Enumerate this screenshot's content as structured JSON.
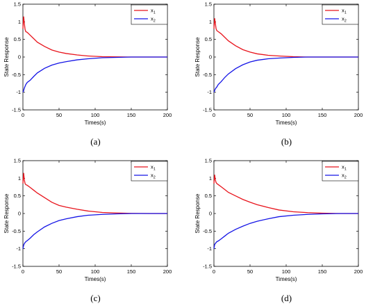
{
  "chart_data": [
    {
      "type": "line",
      "caption": "(a)",
      "xlabel": "Times(s)",
      "ylabel": "State Response",
      "xlim": [
        0,
        200
      ],
      "ylim": [
        -1.5,
        1.5
      ],
      "xticks": [
        "0",
        "50",
        "100",
        "150",
        "200"
      ],
      "yticks": [
        "-1.5",
        "-1",
        "-0.5",
        "0",
        "0.5",
        "1",
        "1.5"
      ],
      "legend_position": "top-right",
      "colors": {
        "x1": "#e8141c",
        "x2": "#1414e6"
      },
      "series": [
        {
          "name": "x1",
          "x": [
            0,
            1,
            2,
            3,
            4,
            6,
            10,
            15,
            20,
            30,
            40,
            50,
            60,
            75,
            90,
            110,
            130,
            150,
            175,
            200
          ],
          "y": [
            0.8,
            1.15,
            0.95,
            0.78,
            0.72,
            0.7,
            0.62,
            0.52,
            0.42,
            0.3,
            0.2,
            0.14,
            0.1,
            0.06,
            0.03,
            0.01,
            0.005,
            0.0,
            0.0,
            0.0
          ]
        },
        {
          "name": "x2",
          "x": [
            0,
            1,
            2,
            4,
            6,
            10,
            15,
            20,
            30,
            40,
            50,
            60,
            75,
            90,
            110,
            130,
            150,
            175,
            200
          ],
          "y": [
            -1.0,
            -0.95,
            -0.88,
            -0.78,
            -0.72,
            -0.66,
            -0.55,
            -0.45,
            -0.32,
            -0.23,
            -0.17,
            -0.13,
            -0.08,
            -0.05,
            -0.02,
            -0.01,
            0.0,
            0.0,
            0.0
          ]
        }
      ]
    },
    {
      "type": "line",
      "caption": "(b)",
      "xlabel": "Times(s)",
      "ylabel": "State Response",
      "xlim": [
        0,
        200
      ],
      "ylim": [
        -1.5,
        1.5
      ],
      "xticks": [
        "0",
        "50",
        "100",
        "150",
        "200"
      ],
      "yticks": [
        "-1.5",
        "-1",
        "-0.5",
        "0",
        "0.5",
        "1",
        "1.5"
      ],
      "legend_position": "top-right",
      "colors": {
        "x1": "#e8141c",
        "x2": "#1414e6"
      },
      "series": [
        {
          "name": "x1",
          "x": [
            0,
            1,
            2,
            3,
            4,
            6,
            10,
            15,
            20,
            30,
            40,
            50,
            60,
            75,
            90,
            110,
            130,
            150,
            175,
            200
          ],
          "y": [
            0.8,
            1.1,
            0.95,
            0.8,
            0.75,
            0.72,
            0.66,
            0.56,
            0.46,
            0.32,
            0.21,
            0.14,
            0.09,
            0.05,
            0.03,
            0.01,
            0.0,
            0.0,
            0.0,
            0.0
          ]
        },
        {
          "name": "x2",
          "x": [
            0,
            1,
            2,
            4,
            6,
            10,
            15,
            20,
            30,
            40,
            50,
            60,
            75,
            90,
            110,
            130,
            150,
            175,
            200
          ],
          "y": [
            -1.0,
            -0.95,
            -0.9,
            -0.85,
            -0.78,
            -0.7,
            -0.58,
            -0.48,
            -0.33,
            -0.22,
            -0.14,
            -0.09,
            -0.05,
            -0.03,
            -0.01,
            0.0,
            0.0,
            0.0,
            0.0
          ]
        }
      ]
    },
    {
      "type": "line",
      "caption": "(c)",
      "xlabel": "Times(s)",
      "ylabel": "State Response",
      "xlim": [
        0,
        200
      ],
      "ylim": [
        -1.5,
        1.5
      ],
      "xticks": [
        "0",
        "50",
        "100",
        "150",
        "200"
      ],
      "yticks": [
        "-1.5",
        "-1",
        "-0.5",
        "0",
        "0.5",
        "1",
        "1.5"
      ],
      "legend_position": "top-right",
      "colors": {
        "x1": "#e8141c",
        "x2": "#1414e6"
      },
      "series": [
        {
          "name": "x1",
          "x": [
            0,
            1,
            2,
            3,
            4,
            6,
            10,
            15,
            20,
            30,
            40,
            50,
            60,
            75,
            90,
            110,
            130,
            150,
            175,
            200
          ],
          "y": [
            0.85,
            1.15,
            0.95,
            0.85,
            0.82,
            0.8,
            0.74,
            0.66,
            0.58,
            0.45,
            0.32,
            0.23,
            0.18,
            0.12,
            0.07,
            0.03,
            0.015,
            0.005,
            0.0,
            0.0
          ]
        },
        {
          "name": "x2",
          "x": [
            0,
            1,
            2,
            4,
            6,
            10,
            15,
            20,
            30,
            40,
            50,
            60,
            75,
            90,
            110,
            130,
            150,
            175,
            200
          ],
          "y": [
            -1.0,
            -0.9,
            -0.85,
            -0.8,
            -0.77,
            -0.7,
            -0.6,
            -0.52,
            -0.38,
            -0.28,
            -0.2,
            -0.15,
            -0.09,
            -0.05,
            -0.025,
            -0.01,
            0.0,
            0.0,
            0.0
          ]
        }
      ]
    },
    {
      "type": "line",
      "caption": "(d)",
      "xlabel": "Times(s)",
      "ylabel": "State Response",
      "xlim": [
        0,
        200
      ],
      "ylim": [
        -1.5,
        1.5
      ],
      "xticks": [
        "0",
        "50",
        "100",
        "150",
        "200"
      ],
      "yticks": [
        "-1.5",
        "-1",
        "-0.5",
        "0",
        "0.5",
        "1",
        "1.5"
      ],
      "legend_position": "top-right",
      "colors": {
        "x1": "#e8141c",
        "x2": "#1414e6"
      },
      "series": [
        {
          "name": "x1",
          "x": [
            0,
            1,
            2,
            3,
            4,
            6,
            10,
            15,
            20,
            30,
            40,
            50,
            60,
            75,
            90,
            110,
            130,
            150,
            175,
            200
          ],
          "y": [
            0.85,
            1.1,
            0.95,
            0.88,
            0.85,
            0.82,
            0.76,
            0.68,
            0.6,
            0.5,
            0.4,
            0.32,
            0.25,
            0.17,
            0.1,
            0.05,
            0.025,
            0.01,
            0.0,
            0.0
          ]
        },
        {
          "name": "x2",
          "x": [
            0,
            1,
            2,
            4,
            6,
            10,
            15,
            20,
            30,
            40,
            50,
            60,
            75,
            90,
            110,
            130,
            150,
            175,
            200
          ],
          "y": [
            -1.0,
            -0.88,
            -0.85,
            -0.8,
            -0.78,
            -0.72,
            -0.64,
            -0.56,
            -0.45,
            -0.36,
            -0.28,
            -0.22,
            -0.15,
            -0.09,
            -0.05,
            -0.025,
            -0.01,
            0.0,
            0.0
          ]
        }
      ]
    }
  ]
}
